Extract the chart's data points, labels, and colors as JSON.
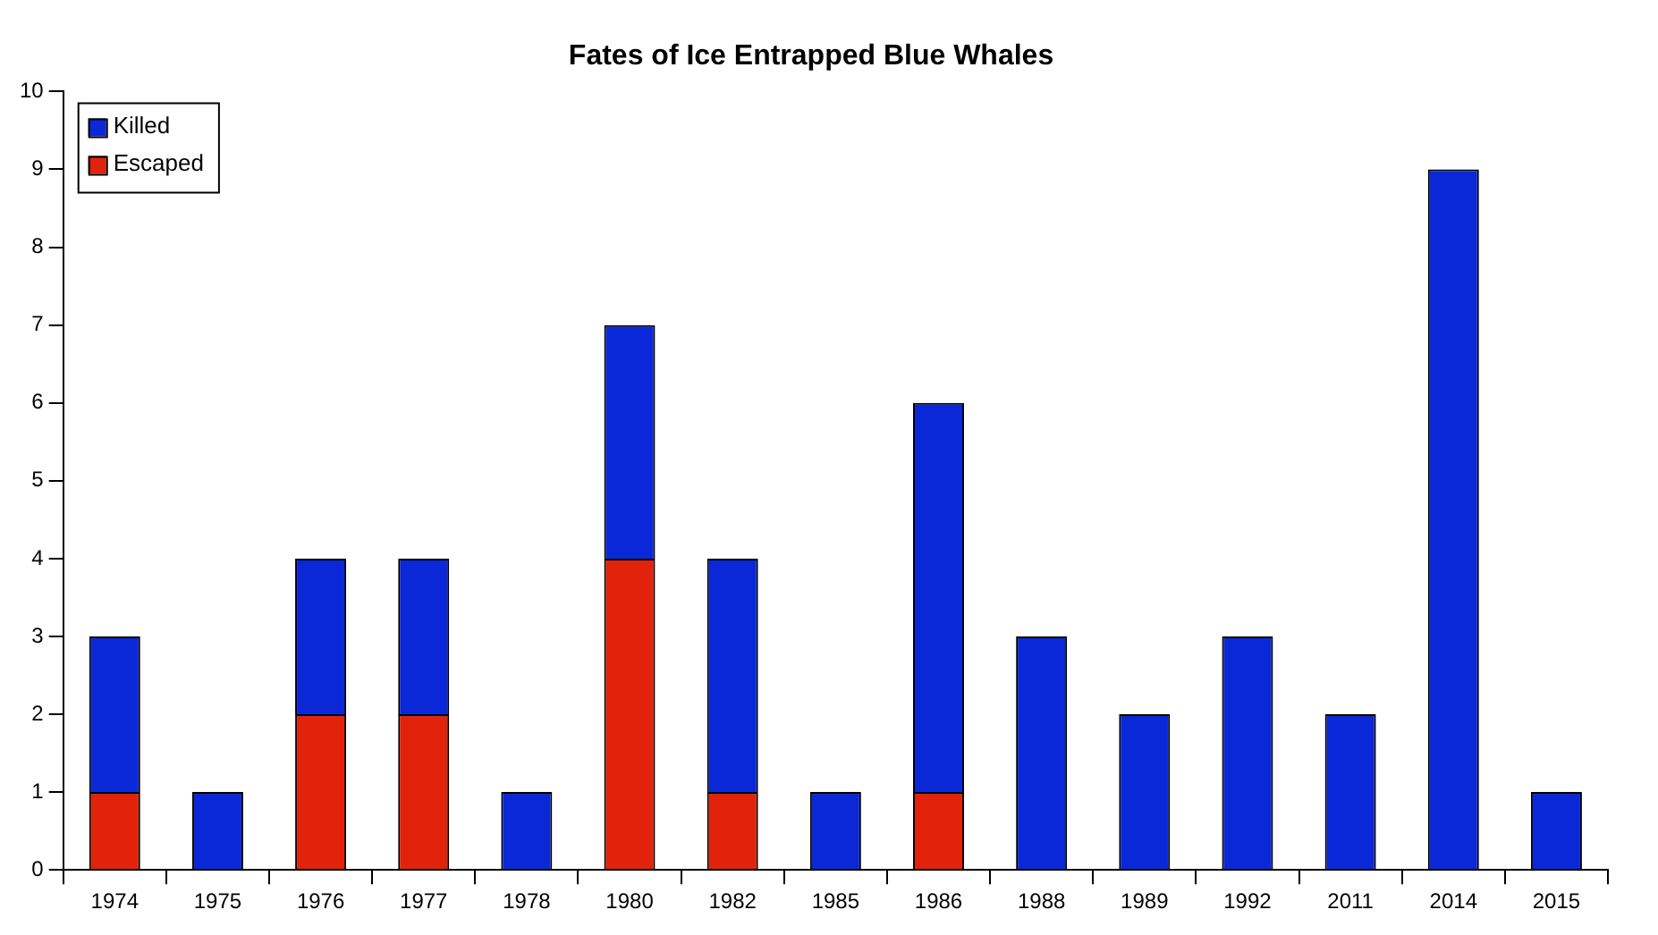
{
  "chart_data": {
    "type": "bar",
    "title": "Fates of Ice Entrapped Blue Whales",
    "stacked": true,
    "categories": [
      "1974",
      "1975",
      "1976",
      "1977",
      "1978",
      "1980",
      "1982",
      "1985",
      "1986",
      "1988",
      "1989",
      "1992",
      "2011",
      "2014",
      "2015"
    ],
    "series": [
      {
        "name": "Escaped",
        "color": "#e0230a",
        "values": [
          1,
          0,
          2,
          2,
          0,
          4,
          1,
          0,
          1,
          0,
          0,
          0,
          0,
          0,
          0
        ]
      },
      {
        "name": "Killed",
        "color": "#0a28d8",
        "values": [
          2,
          1,
          2,
          2,
          1,
          3,
          3,
          1,
          5,
          3,
          2,
          3,
          2,
          9,
          1
        ]
      }
    ],
    "ylim": [
      0,
      10
    ],
    "yticks": [
      0,
      1,
      2,
      3,
      4,
      5,
      6,
      7,
      8,
      9,
      10
    ],
    "legend": "top left"
  }
}
